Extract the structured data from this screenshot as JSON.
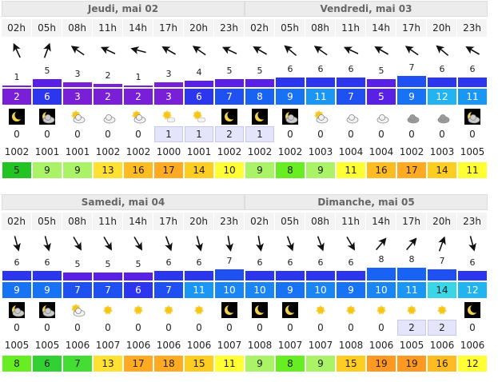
{
  "days": [
    {
      "label": "Jeudi, mai 02",
      "hours": [
        "02h",
        "05h",
        "08h",
        "11h",
        "14h",
        "17h",
        "20h",
        "23h"
      ],
      "wind": [
        1,
        5,
        3,
        2,
        1,
        3,
        4,
        5
      ],
      "gust": [
        2,
        6,
        3,
        2,
        2,
        3,
        6,
        7
      ],
      "precip": [
        0,
        0,
        0,
        0,
        0,
        1,
        1,
        2
      ],
      "pressure": [
        1002,
        1001,
        1001,
        1002,
        1002,
        1000,
        1001,
        1002
      ],
      "temp": [
        5,
        9,
        9,
        13,
        16,
        17,
        14,
        10
      ]
    },
    {
      "label": "Vendredi, mai 03",
      "hours": [
        "02h",
        "05h",
        "08h",
        "11h",
        "14h",
        "17h",
        "20h",
        "23h"
      ],
      "wind": [
        5,
        6,
        6,
        6,
        5,
        7,
        6,
        6
      ],
      "gust": [
        8,
        9,
        11,
        7,
        5,
        9,
        12,
        11
      ],
      "precip": [
        1,
        0,
        0,
        0,
        0,
        0,
        0,
        0
      ],
      "pressure": [
        1002,
        1002,
        1003,
        1004,
        1004,
        1002,
        1003,
        1005
      ],
      "temp": [
        9,
        8,
        9,
        11,
        16,
        17,
        14,
        11
      ]
    },
    {
      "label": "Samedi, mai 04",
      "hours": [
        "02h",
        "05h",
        "08h",
        "11h",
        "14h",
        "17h",
        "20h",
        "23h"
      ],
      "wind": [
        6,
        6,
        5,
        5,
        5,
        6,
        6,
        7
      ],
      "gust": [
        9,
        9,
        7,
        7,
        6,
        7,
        11,
        10
      ],
      "precip": [
        0,
        0,
        0,
        0,
        0,
        0,
        0,
        0
      ],
      "pressure": [
        1005,
        1005,
        1006,
        1007,
        1006,
        1006,
        1006,
        1007
      ],
      "temp": [
        8,
        6,
        7,
        13,
        17,
        18,
        15,
        11
      ]
    },
    {
      "label": "Dimanche, mai 05",
      "hours": [
        "02h",
        "05h",
        "08h",
        "11h",
        "14h",
        "17h",
        "20h",
        "23h"
      ],
      "wind": [
        6,
        6,
        6,
        6,
        8,
        8,
        7,
        6
      ],
      "gust": [
        10,
        9,
        10,
        9,
        10,
        11,
        14,
        12
      ],
      "precip": [
        0,
        0,
        0,
        0,
        0,
        2,
        2,
        0
      ],
      "pressure": [
        1008,
        1007,
        1007,
        1008,
        1006,
        1005,
        1006,
        1006
      ],
      "temp": [
        9,
        8,
        9,
        15,
        19,
        19,
        16,
        12
      ]
    }
  ]
}
